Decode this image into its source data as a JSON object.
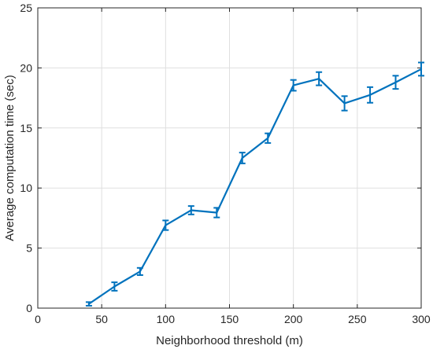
{
  "chart_data": {
    "type": "line",
    "title": "",
    "xlabel": "Neighborhood threshold (m)",
    "ylabel": "Average computation time (sec)",
    "xlim": [
      0,
      300
    ],
    "ylim": [
      0,
      25
    ],
    "xticks": [
      0,
      50,
      100,
      150,
      200,
      250,
      300
    ],
    "yticks": [
      0,
      5,
      10,
      15,
      20,
      25
    ],
    "grid": true,
    "error_bars": true,
    "series": [
      {
        "color": "#0072bd",
        "x": [
          40,
          60,
          80,
          100,
          120,
          140,
          160,
          180,
          200,
          220,
          240,
          260,
          280,
          300
        ],
        "y": [
          0.35,
          1.8,
          3.05,
          6.9,
          8.15,
          7.95,
          12.5,
          14.15,
          18.55,
          19.1,
          17.05,
          17.75,
          18.8,
          19.9
        ],
        "error": [
          0.15,
          0.35,
          0.3,
          0.4,
          0.35,
          0.4,
          0.45,
          0.4,
          0.45,
          0.55,
          0.6,
          0.65,
          0.55,
          0.55
        ]
      }
    ]
  }
}
